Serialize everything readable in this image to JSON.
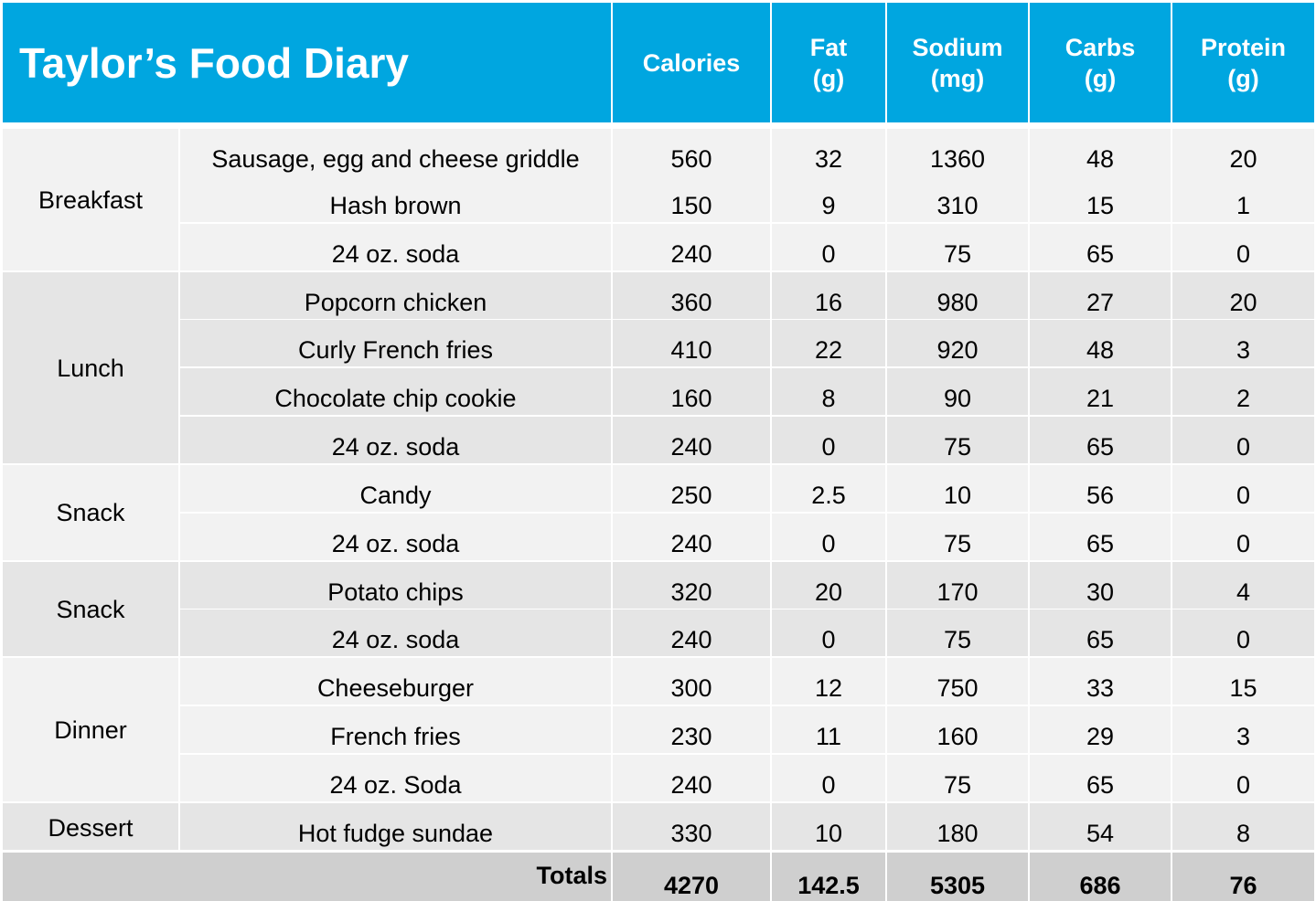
{
  "title": "Taylor’s Food Diary",
  "columns": [
    {
      "line1": "Calories",
      "line2": ""
    },
    {
      "line1": "Fat",
      "line2": "(g)"
    },
    {
      "line1": "Sodium",
      "line2": "(mg)"
    },
    {
      "line1": "Carbs",
      "line2": "(g)"
    },
    {
      "line1": "Protein",
      "line2": "(g)"
    }
  ],
  "meals": [
    {
      "label": "Breakfast",
      "rows": [
        {
          "item": "Sausage, egg and cheese griddle",
          "values": [
            "560",
            "32",
            "1360",
            "48",
            "20"
          ]
        },
        {
          "item": "Hash brown",
          "values": [
            "150",
            "9",
            "310",
            "15",
            "1"
          ]
        },
        {
          "item": "24 oz. soda",
          "values": [
            "240",
            "0",
            "75",
            "65",
            "0"
          ]
        }
      ]
    },
    {
      "label": "Lunch",
      "rows": [
        {
          "item": "Popcorn chicken",
          "values": [
            "360",
            "16",
            "980",
            "27",
            "20"
          ]
        },
        {
          "item": "Curly French fries",
          "values": [
            "410",
            "22",
            "920",
            "48",
            "3"
          ]
        },
        {
          "item": "Chocolate chip cookie",
          "values": [
            "160",
            "8",
            "90",
            "21",
            "2"
          ]
        },
        {
          "item": "24 oz. soda",
          "values": [
            "240",
            "0",
            "75",
            "65",
            "0"
          ]
        }
      ]
    },
    {
      "label": "Snack",
      "rows": [
        {
          "item": "Candy",
          "values": [
            "250",
            "2.5",
            "10",
            "56",
            "0"
          ]
        },
        {
          "item": "24 oz. soda",
          "values": [
            "240",
            "0",
            "75",
            "65",
            "0"
          ]
        }
      ]
    },
    {
      "label": "Snack",
      "rows": [
        {
          "item": "Potato chips",
          "values": [
            "320",
            "20",
            "170",
            "30",
            "4"
          ]
        },
        {
          "item": "24 oz. soda",
          "values": [
            "240",
            "0",
            "75",
            "65",
            "0"
          ]
        }
      ]
    },
    {
      "label": "Dinner",
      "rows": [
        {
          "item": "Cheeseburger",
          "values": [
            "300",
            "12",
            "750",
            "33",
            "15"
          ]
        },
        {
          "item": "French fries",
          "values": [
            "230",
            "11",
            "160",
            "29",
            "3"
          ]
        },
        {
          "item": "24 oz. Soda",
          "values": [
            "240",
            "0",
            "75",
            "65",
            "0"
          ]
        }
      ]
    },
    {
      "label": "Dessert",
      "rows": [
        {
          "item": "Hot fudge sundae",
          "values": [
            "330",
            "10",
            "180",
            "54",
            "8"
          ]
        }
      ]
    }
  ],
  "totals": {
    "label": "Totals",
    "values": [
      "4270",
      "142.5",
      "5305",
      "686",
      "76"
    ]
  },
  "colors": {
    "header": "#00a6e0",
    "header_text": "#ffffff",
    "row_light": "#f2f2f2",
    "row_dark": "#e5e5e5",
    "totals": "#cfcfcf",
    "grid": "#ffffff"
  }
}
